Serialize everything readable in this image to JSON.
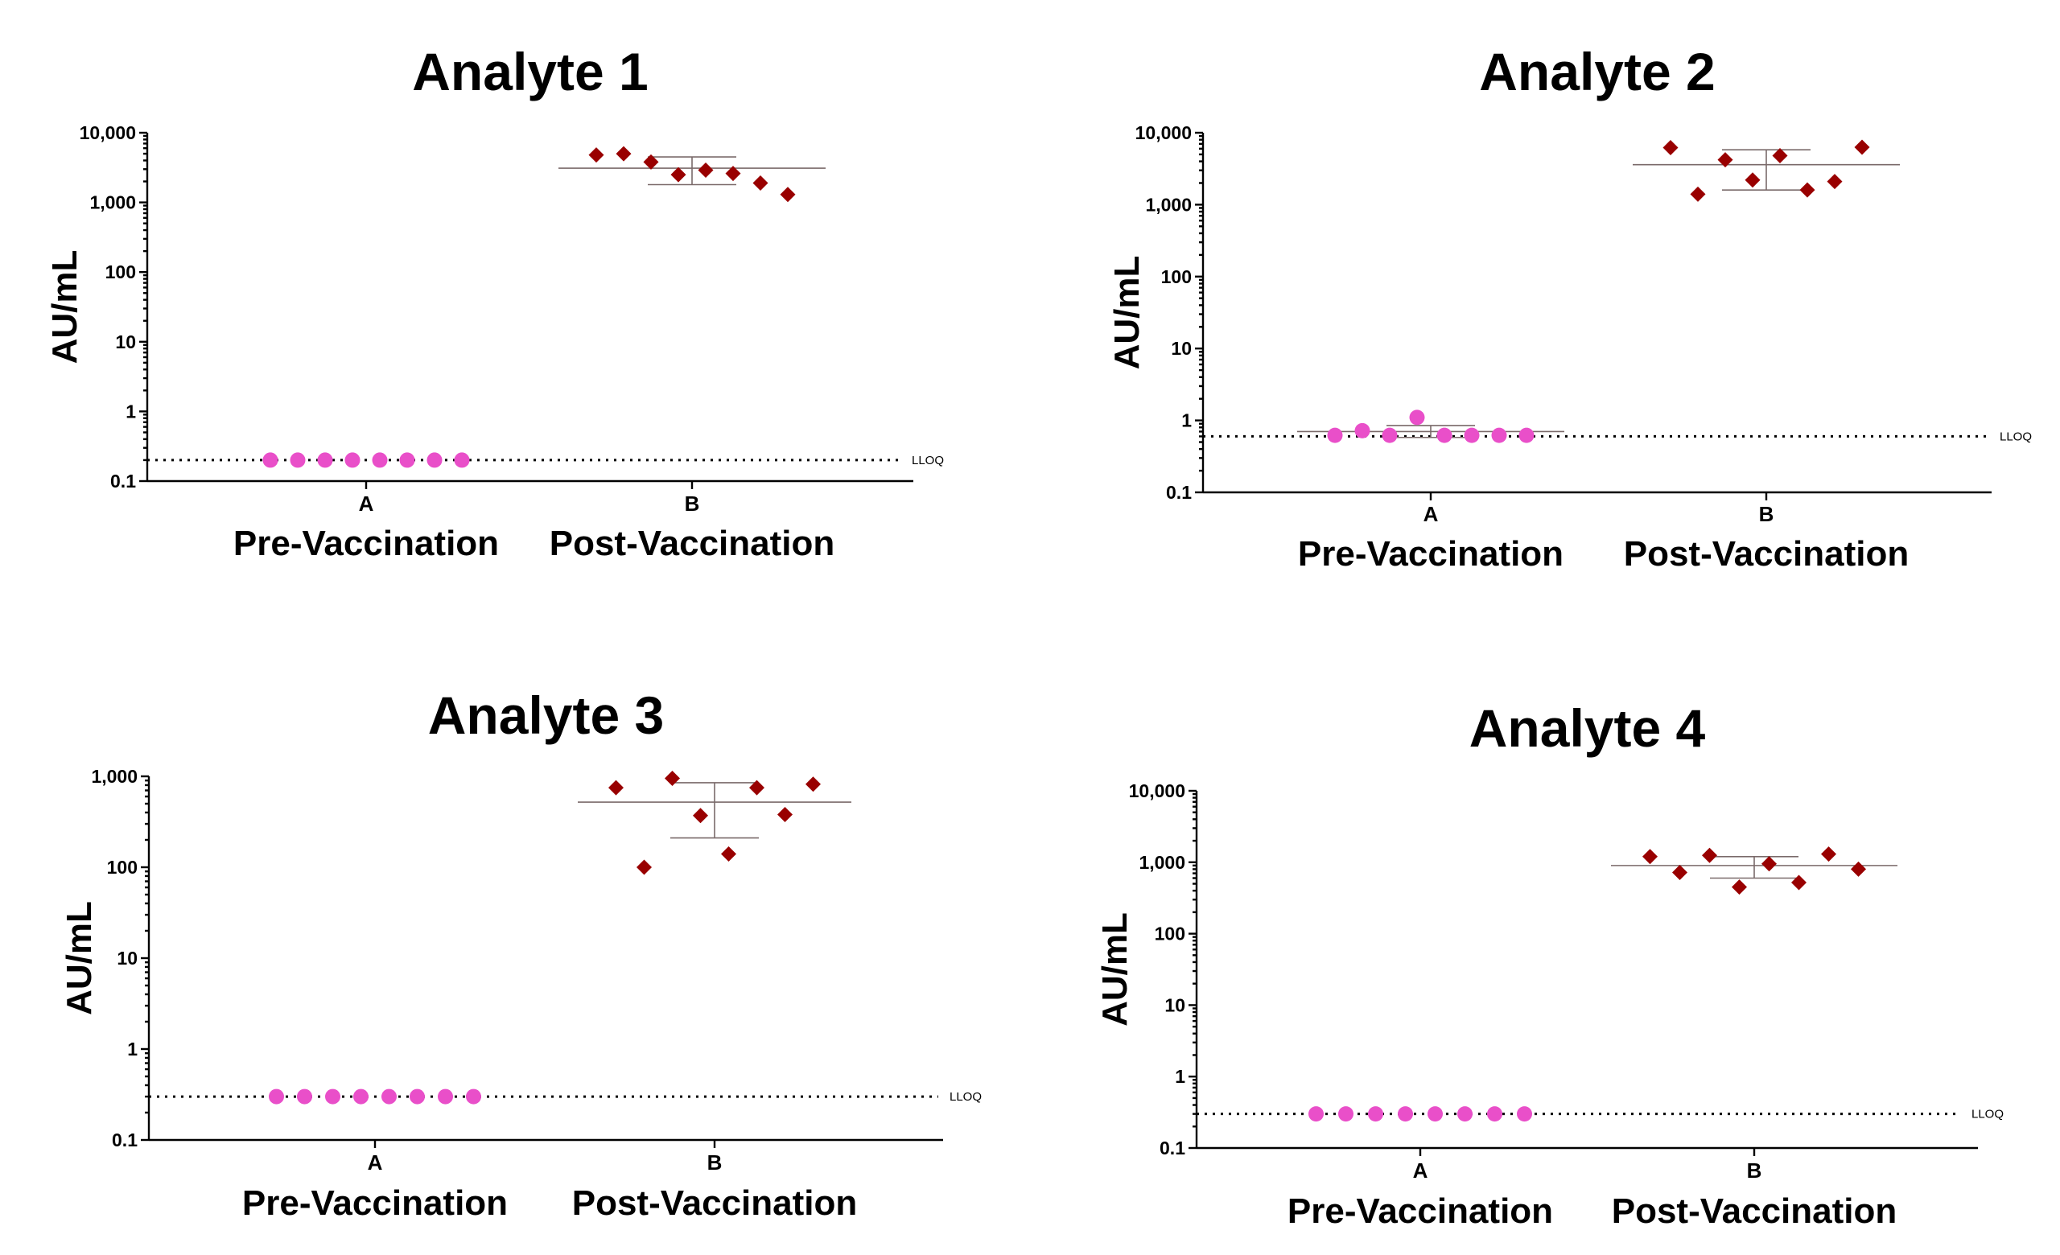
{
  "colors": {
    "pre": "#e94fc9",
    "post": "#990000",
    "axis": "#000000",
    "error_bar": "#7a6a6a"
  },
  "chart_data": [
    {
      "type": "scatter",
      "scale": "log",
      "title": "Analyte 1",
      "ylabel": "AU/mL",
      "ylim": [
        0.1,
        10000
      ],
      "yticks": [
        0.1,
        1,
        10,
        100,
        1000,
        10000
      ],
      "ytick_labels": [
        "0.1",
        "1",
        "10",
        "100",
        "1,000",
        "10,000"
      ],
      "categories": [
        "A",
        "B"
      ],
      "group_labels": [
        "Pre-Vaccination",
        "Post-Vaccination"
      ],
      "reference_line": {
        "value": 0.2,
        "label": "LLOQ"
      },
      "series": [
        {
          "category": "A",
          "marker": "circle",
          "values": [
            0.2,
            0.2,
            0.2,
            0.2,
            0.2,
            0.2,
            0.2,
            0.2
          ],
          "center": null,
          "low": null,
          "high": null
        },
        {
          "category": "B",
          "marker": "diamond",
          "values": [
            4800,
            5000,
            3800,
            2500,
            2900,
            2600,
            1900,
            1300
          ],
          "center": 3100,
          "low": 1800,
          "high": 4500
        }
      ]
    },
    {
      "type": "scatter",
      "scale": "log",
      "title": "Analyte 2",
      "ylabel": "AU/mL",
      "ylim": [
        0.1,
        10000
      ],
      "yticks": [
        0.1,
        1,
        10,
        100,
        1000,
        10000
      ],
      "ytick_labels": [
        "0.1",
        "1",
        "10",
        "100",
        "1,000",
        "10,000"
      ],
      "categories": [
        "A",
        "B"
      ],
      "group_labels": [
        "Pre-Vaccination",
        "Post-Vaccination"
      ],
      "reference_line": {
        "value": 0.6,
        "label": "LLOQ"
      },
      "series": [
        {
          "category": "A",
          "marker": "circle",
          "values": [
            0.62,
            0.72,
            0.62,
            1.1,
            0.62,
            0.62,
            0.62,
            0.62
          ],
          "center": 0.7,
          "low": 0.58,
          "high": 0.85
        },
        {
          "category": "B",
          "marker": "diamond",
          "values": [
            6200,
            1400,
            4200,
            2200,
            4800,
            1600,
            2100,
            6300
          ],
          "center": 3600,
          "low": 1600,
          "high": 5800
        }
      ]
    },
    {
      "type": "scatter",
      "scale": "log",
      "title": "Analyte 3",
      "ylabel": "AU/mL",
      "ylim": [
        0.1,
        1000
      ],
      "yticks": [
        0.1,
        1,
        10,
        100,
        1000
      ],
      "ytick_labels": [
        "0.1",
        "1",
        "10",
        "100",
        "1,000"
      ],
      "categories": [
        "A",
        "B"
      ],
      "group_labels": [
        "Pre-Vaccination",
        "Post-Vaccination"
      ],
      "reference_line": {
        "value": 0.3,
        "label": "LLOQ"
      },
      "series": [
        {
          "category": "A",
          "marker": "circle",
          "values": [
            0.3,
            0.3,
            0.3,
            0.3,
            0.3,
            0.3,
            0.3,
            0.3
          ],
          "center": null,
          "low": null,
          "high": null
        },
        {
          "category": "B",
          "marker": "diamond",
          "values": [
            750,
            100,
            950,
            370,
            140,
            750,
            380,
            820
          ],
          "center": 520,
          "low": 210,
          "high": 850
        }
      ]
    },
    {
      "type": "scatter",
      "scale": "log",
      "title": "Analyte 4",
      "ylabel": "AU/mL",
      "ylim": [
        0.1,
        10000
      ],
      "yticks": [
        0.1,
        1,
        10,
        100,
        1000,
        10000
      ],
      "ytick_labels": [
        "0.1",
        "1",
        "10",
        "100",
        "1,000",
        "10,000"
      ],
      "categories": [
        "A",
        "B"
      ],
      "group_labels": [
        "Pre-Vaccination",
        "Post-Vaccination"
      ],
      "reference_line": {
        "value": 0.3,
        "label": "LLOQ"
      },
      "series": [
        {
          "category": "A",
          "marker": "circle",
          "values": [
            0.3,
            0.3,
            0.3,
            0.3,
            0.3,
            0.3,
            0.3,
            0.3
          ],
          "center": null,
          "low": null,
          "high": null
        },
        {
          "category": "B",
          "marker": "diamond",
          "values": [
            1200,
            720,
            1250,
            450,
            950,
            520,
            1300,
            800
          ],
          "center": 900,
          "low": 600,
          "high": 1200
        }
      ]
    }
  ]
}
